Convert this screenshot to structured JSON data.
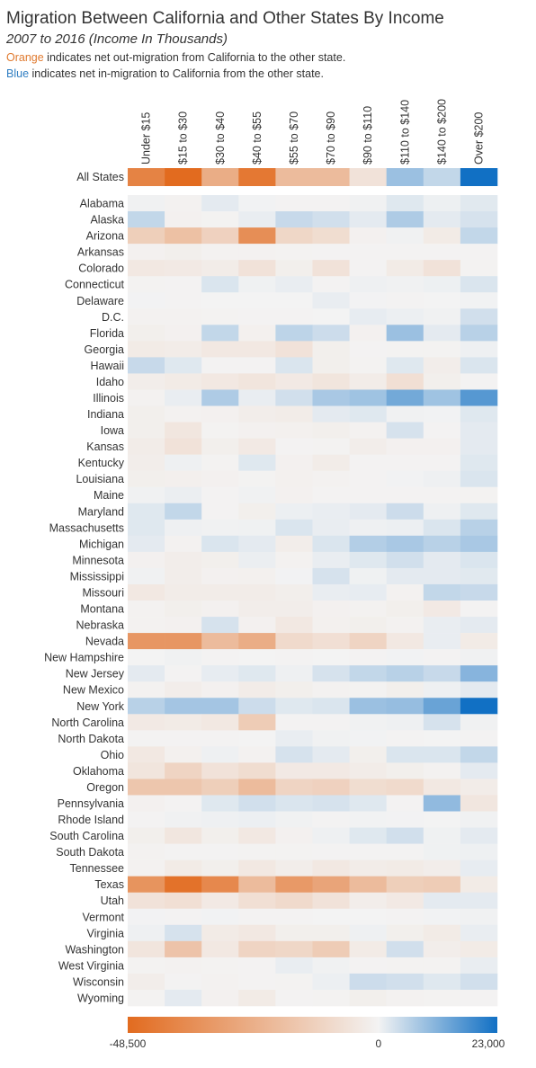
{
  "title": "Migration Between California and Other States By Income",
  "subtitle": "2007 to 2016 (Income In Thousands)",
  "legend_notes": [
    {
      "keyword": "Orange",
      "text": " indicates net out-migration from California to the other state.",
      "color": "#e07a2f"
    },
    {
      "keyword": "Blue",
      "text": " indicates net in-migration to California from the other state.",
      "color": "#2f7ec2"
    }
  ],
  "colors": {
    "negative": "#e26b1f",
    "neutral": "#f3f3f3",
    "positive": "#1170c4"
  },
  "chart_data": {
    "type": "heatmap",
    "columns": [
      "Under $15",
      "$15 to $30",
      "$30 to $40",
      "$40 to $55",
      "$55 to $70",
      "$70 to $90",
      "$90 to $110",
      "$110 to $140",
      "$140 to $200",
      "Over $200"
    ],
    "summary_row": {
      "label": "All States",
      "values": [
        -40000,
        -48500,
        -25000,
        -44000,
        -20000,
        -20000,
        -6000,
        9000,
        5000,
        23000
      ]
    },
    "rows": [
      {
        "label": "Alabama",
        "values": [
          300,
          -600,
          1500,
          200,
          -300,
          -300,
          300,
          2000,
          600,
          1800
        ]
      },
      {
        "label": "Alaska",
        "values": [
          5000,
          -1000,
          -500,
          1000,
          4500,
          3500,
          1500,
          7000,
          1500,
          3000
        ]
      },
      {
        "label": "Arizona",
        "values": [
          -13000,
          -18000,
          -12000,
          -36000,
          -10000,
          -8000,
          -1000,
          300,
          -3000,
          5000
        ]
      },
      {
        "label": "Arkansas",
        "values": [
          -900,
          -1500,
          -600,
          -800,
          -500,
          -300,
          -200,
          -300,
          -300,
          -200
        ]
      },
      {
        "label": "Colorado",
        "values": [
          -4000,
          -3500,
          -2500,
          -6000,
          -1500,
          -6000,
          -300,
          -3000,
          -6000,
          -400
        ]
      },
      {
        "label": "Connecticut",
        "values": [
          -400,
          -300,
          2500,
          400,
          1000,
          -200,
          500,
          300,
          600,
          2500
        ]
      },
      {
        "label": "Delaware",
        "values": [
          100,
          -200,
          0,
          -100,
          0,
          1000,
          100,
          -200,
          -100,
          200
        ]
      },
      {
        "label": "D.C.",
        "values": [
          -600,
          -600,
          -400,
          -300,
          -300,
          -100,
          1200,
          700,
          300,
          3500
        ]
      },
      {
        "label": "Florida",
        "values": [
          -1500,
          -1000,
          5000,
          -1200,
          5500,
          4000,
          -1000,
          9000,
          1500,
          6000
        ]
      },
      {
        "label": "Georgia",
        "values": [
          -3000,
          -2500,
          -4000,
          -4000,
          -6000,
          -1500,
          -300,
          -500,
          -400,
          500
        ]
      },
      {
        "label": "Hawaii",
        "values": [
          4500,
          2000,
          -300,
          -300,
          2500,
          -1500,
          -500,
          2000,
          -2000,
          2500
        ]
      },
      {
        "label": "Idaho",
        "values": [
          -2000,
          -3000,
          -4000,
          -5000,
          -3500,
          -5000,
          -2500,
          -7000,
          -1500,
          -300
        ]
      },
      {
        "label": "Illinois",
        "values": [
          -800,
          1000,
          7000,
          1000,
          3500,
          7500,
          8500,
          13000,
          8500,
          16000
        ]
      },
      {
        "label": "Indiana",
        "values": [
          -1500,
          -600,
          -1000,
          -2000,
          -2500,
          1500,
          2000,
          300,
          200,
          2000
        ]
      },
      {
        "label": "Iowa",
        "values": [
          -1500,
          -4500,
          -500,
          -1000,
          -1200,
          -1500,
          -700,
          3000,
          -300,
          1500
        ]
      },
      {
        "label": "Kansas",
        "values": [
          -2500,
          -6000,
          -1500,
          -3500,
          -300,
          -500,
          -2000,
          -1000,
          -1000,
          1500
        ]
      },
      {
        "label": "Kentucky",
        "values": [
          -2000,
          500,
          -500,
          2000,
          -1000,
          -2500,
          -300,
          -300,
          -300,
          2000
        ]
      },
      {
        "label": "Louisiana",
        "values": [
          -1500,
          -1300,
          -900,
          -500,
          -1200,
          -800,
          -300,
          200,
          500,
          2500
        ]
      },
      {
        "label": "Maine",
        "values": [
          300,
          800,
          -200,
          300,
          -1000,
          -300,
          -200,
          -200,
          -200,
          -500
        ]
      },
      {
        "label": "Maryland",
        "values": [
          2000,
          5000,
          -200,
          -1500,
          700,
          1000,
          1500,
          4000,
          500,
          2000
        ]
      },
      {
        "label": "Massachusetts",
        "values": [
          2000,
          500,
          300,
          400,
          2500,
          1000,
          500,
          700,
          2500,
          6000
        ]
      },
      {
        "label": "Michigan",
        "values": [
          1500,
          -700,
          2500,
          1500,
          -2000,
          2500,
          6500,
          7500,
          6000,
          7500
        ]
      },
      {
        "label": "Minnesota",
        "values": [
          -1000,
          -2000,
          -1500,
          800,
          -600,
          1000,
          2000,
          3500,
          1500,
          2500
        ]
      },
      {
        "label": "Mississippi",
        "values": [
          300,
          -2000,
          -1000,
          -1200,
          100,
          3000,
          400,
          1500,
          1500,
          1800
        ]
      },
      {
        "label": "Missouri",
        "values": [
          -4000,
          -2500,
          -2500,
          -2500,
          -1800,
          1000,
          1200,
          -800,
          5000,
          4500
        ]
      },
      {
        "label": "Montana",
        "values": [
          -700,
          -1500,
          -1000,
          -2000,
          -2000,
          -1000,
          -700,
          -1500,
          -3500,
          -300
        ]
      },
      {
        "label": "Nebraska",
        "values": [
          -800,
          -1000,
          3000,
          -1000,
          -4000,
          -1200,
          -1500,
          -800,
          1000,
          1500
        ]
      },
      {
        "label": "Nevada",
        "values": [
          -33000,
          -33000,
          -20000,
          -25000,
          -9000,
          -7000,
          -11000,
          -4000,
          1000,
          -3000
        ]
      },
      {
        "label": "New Hampshire",
        "values": [
          0,
          300,
          -200,
          -100,
          -200,
          -100,
          -200,
          200,
          -200,
          300
        ]
      },
      {
        "label": "New Jersey",
        "values": [
          1500,
          -200,
          1200,
          2000,
          500,
          3000,
          5000,
          6000,
          4500,
          11000
        ]
      },
      {
        "label": "New Mexico",
        "values": [
          -800,
          -2000,
          -1000,
          -2500,
          -1500,
          -800,
          -500,
          -1500,
          500,
          1500
        ]
      },
      {
        "label": "New York",
        "values": [
          6000,
          8000,
          8000,
          4000,
          2000,
          2500,
          9000,
          9500,
          14000,
          23000
        ]
      },
      {
        "label": "North Carolina",
        "values": [
          -3500,
          -3000,
          -4000,
          -14000,
          -300,
          -200,
          300,
          500,
          3000,
          300
        ]
      },
      {
        "label": "North Dakota",
        "values": [
          -300,
          -200,
          -300,
          -100,
          1000,
          300,
          200,
          -200,
          -100,
          -200
        ]
      },
      {
        "label": "Ohio",
        "values": [
          -4000,
          -1200,
          500,
          -600,
          3000,
          1500,
          -1500,
          2500,
          2500,
          5000
        ]
      },
      {
        "label": "Oklahoma",
        "values": [
          -5000,
          -11000,
          -6000,
          -8000,
          -3500,
          -3500,
          -2500,
          -1500,
          -800,
          1500
        ]
      },
      {
        "label": "Oregon",
        "values": [
          -16000,
          -16000,
          -13000,
          -20000,
          -11000,
          -12000,
          -8000,
          -9000,
          -4000,
          -2500
        ]
      },
      {
        "label": "Pennsylvania",
        "values": [
          -1000,
          -300,
          2000,
          3500,
          2500,
          3000,
          2000,
          -300,
          10000,
          -4500
        ]
      },
      {
        "label": "Rhode Island",
        "values": [
          -300,
          300,
          500,
          700,
          300,
          -200,
          200,
          100,
          0,
          300
        ]
      },
      {
        "label": "South Carolina",
        "values": [
          -1500,
          -4500,
          -1500,
          -4000,
          -1000,
          500,
          2000,
          3500,
          400,
          1500
        ]
      },
      {
        "label": "South Dakota",
        "values": [
          -800,
          -200,
          -300,
          -500,
          -400,
          -300,
          -300,
          -300,
          400,
          500
        ]
      },
      {
        "label": "Tennessee",
        "values": [
          -800,
          -3000,
          -1500,
          -4000,
          -2000,
          -4000,
          -2500,
          -3000,
          -2000,
          1200
        ]
      },
      {
        "label": "Texas",
        "values": [
          -34000,
          -46000,
          -38000,
          -20000,
          -32000,
          -28000,
          -20000,
          -13000,
          -14000,
          -3000
        ]
      },
      {
        "label": "Utah",
        "values": [
          -6000,
          -7000,
          -3500,
          -7000,
          -9000,
          -6000,
          -2000,
          -3500,
          1500,
          1500
        ]
      },
      {
        "label": "Vermont",
        "values": [
          100,
          -200,
          200,
          -200,
          -200,
          0,
          -100,
          -200,
          200,
          300
        ]
      },
      {
        "label": "Virginia",
        "values": [
          500,
          3000,
          -3000,
          -4000,
          -1500,
          -1500,
          500,
          -1500,
          -3000,
          1000
        ]
      },
      {
        "label": "Washington",
        "values": [
          -5000,
          -17000,
          -4000,
          -11000,
          -10000,
          -14000,
          -3000,
          3500,
          -2000,
          -3000
        ]
      },
      {
        "label": "West Virginia",
        "values": [
          -400,
          -800,
          -400,
          -200,
          1000,
          300,
          -300,
          -500,
          -500,
          1000
        ]
      },
      {
        "label": "Wisconsin",
        "values": [
          -2000,
          -300,
          -600,
          -200,
          -500,
          700,
          4000,
          3500,
          2000,
          3500
        ]
      },
      {
        "label": "Wyoming",
        "values": [
          -400,
          1500,
          -1000,
          -3000,
          -300,
          -400,
          -1500,
          -700,
          -400,
          -300
        ]
      }
    ],
    "color_scale": {
      "min": -48500,
      "mid": 0,
      "max": 23000,
      "min_label": "-48,500",
      "mid_label": "0",
      "max_label": "23,000"
    }
  }
}
